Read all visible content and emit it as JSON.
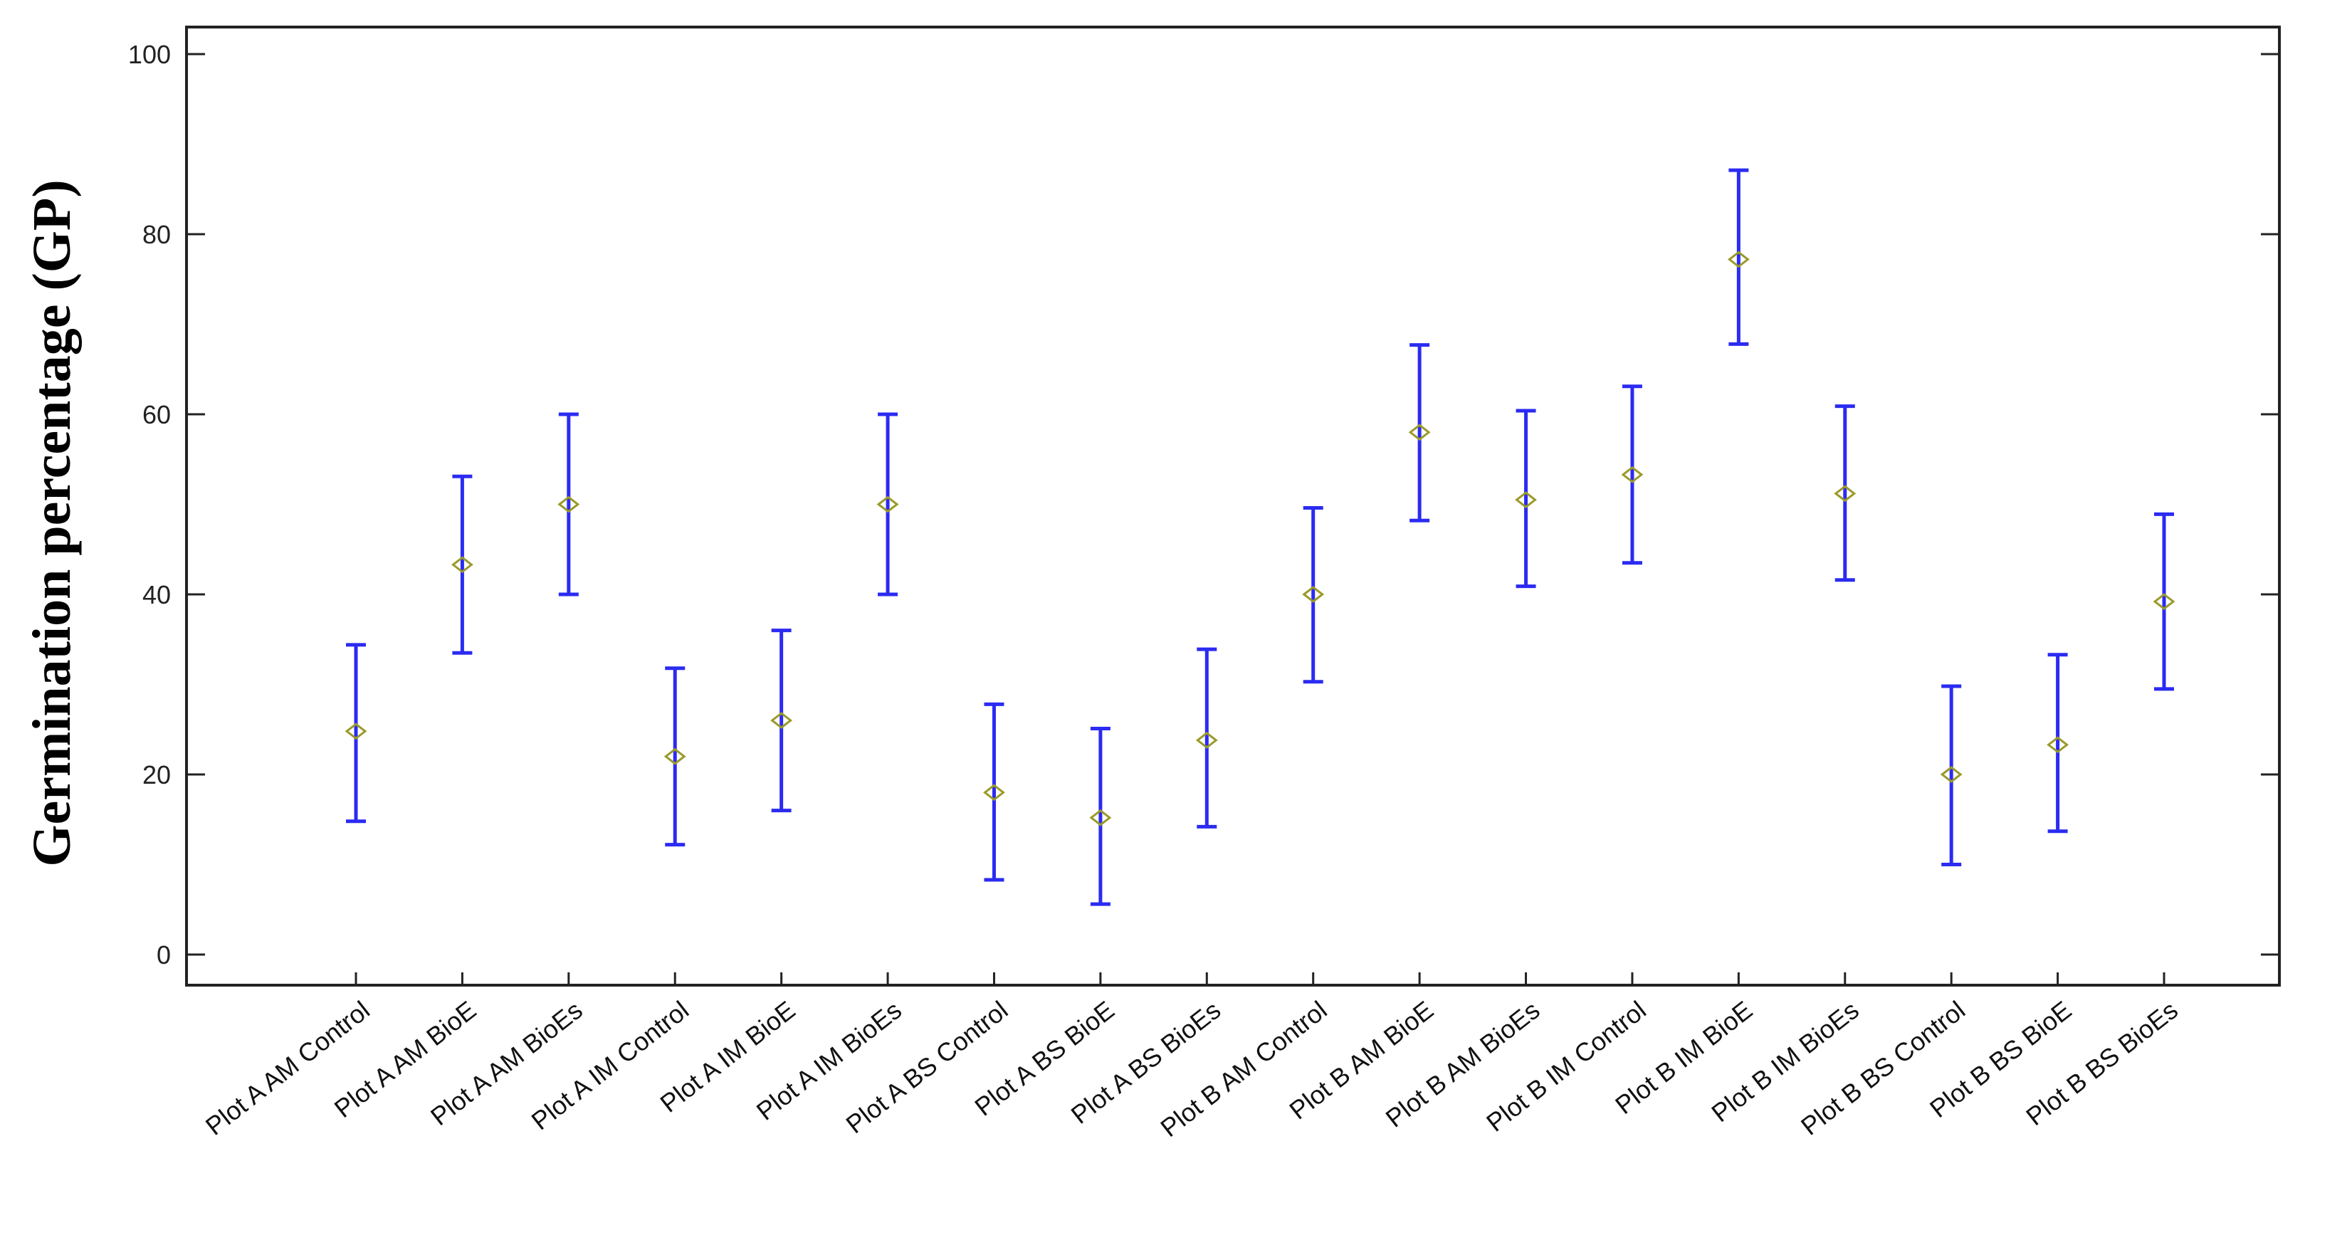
{
  "chart_data": {
    "type": "scatter",
    "title": "",
    "xlabel": "",
    "ylabel": "Germination  percentage (GP)",
    "ylim": [
      0,
      100
    ],
    "yticks": [
      0,
      20,
      40,
      60,
      80,
      100
    ],
    "grid": false,
    "categories": [
      "Plot A AM Control",
      "Plot A AM BioE",
      "Plot A AM BioEs",
      "Plot A IM Control",
      "Plot A IM BioE",
      "Plot A IM BioEs",
      "Plot A BS Control",
      "Plot A BS BioE",
      "Plot A BS BioEs",
      "Plot B AM Control",
      "Plot B AM BioE",
      "Plot B AM BioEs",
      "Plot B IM Control",
      "Plot B IM BioE",
      "Plot B IM BioEs",
      "Plot B BS Control",
      "Plot B BS BioE",
      "Plot B BS BioEs"
    ],
    "series": [
      {
        "values": [
          24.8,
          43.3,
          50.0,
          22.0,
          26.0,
          50.0,
          18.0,
          15.2,
          23.8,
          40.0,
          58.0,
          50.5,
          53.3,
          77.2,
          51.2,
          20.0,
          23.3,
          39.2
        ],
        "lower": [
          14.8,
          33.5,
          40.0,
          12.2,
          16.0,
          40.0,
          8.3,
          5.6,
          14.2,
          30.3,
          48.2,
          40.9,
          43.5,
          67.8,
          41.6,
          10.0,
          13.7,
          29.5
        ],
        "upper": [
          34.4,
          53.1,
          60.0,
          31.8,
          36.0,
          60.0,
          27.8,
          25.1,
          33.9,
          49.6,
          67.7,
          60.4,
          63.1,
          87.1,
          60.9,
          29.8,
          33.3,
          48.9
        ]
      }
    ],
    "colors": {
      "error_bar": "#2b2bf2",
      "mean_marker": "#9a9a2a",
      "frame": "#222222"
    }
  }
}
